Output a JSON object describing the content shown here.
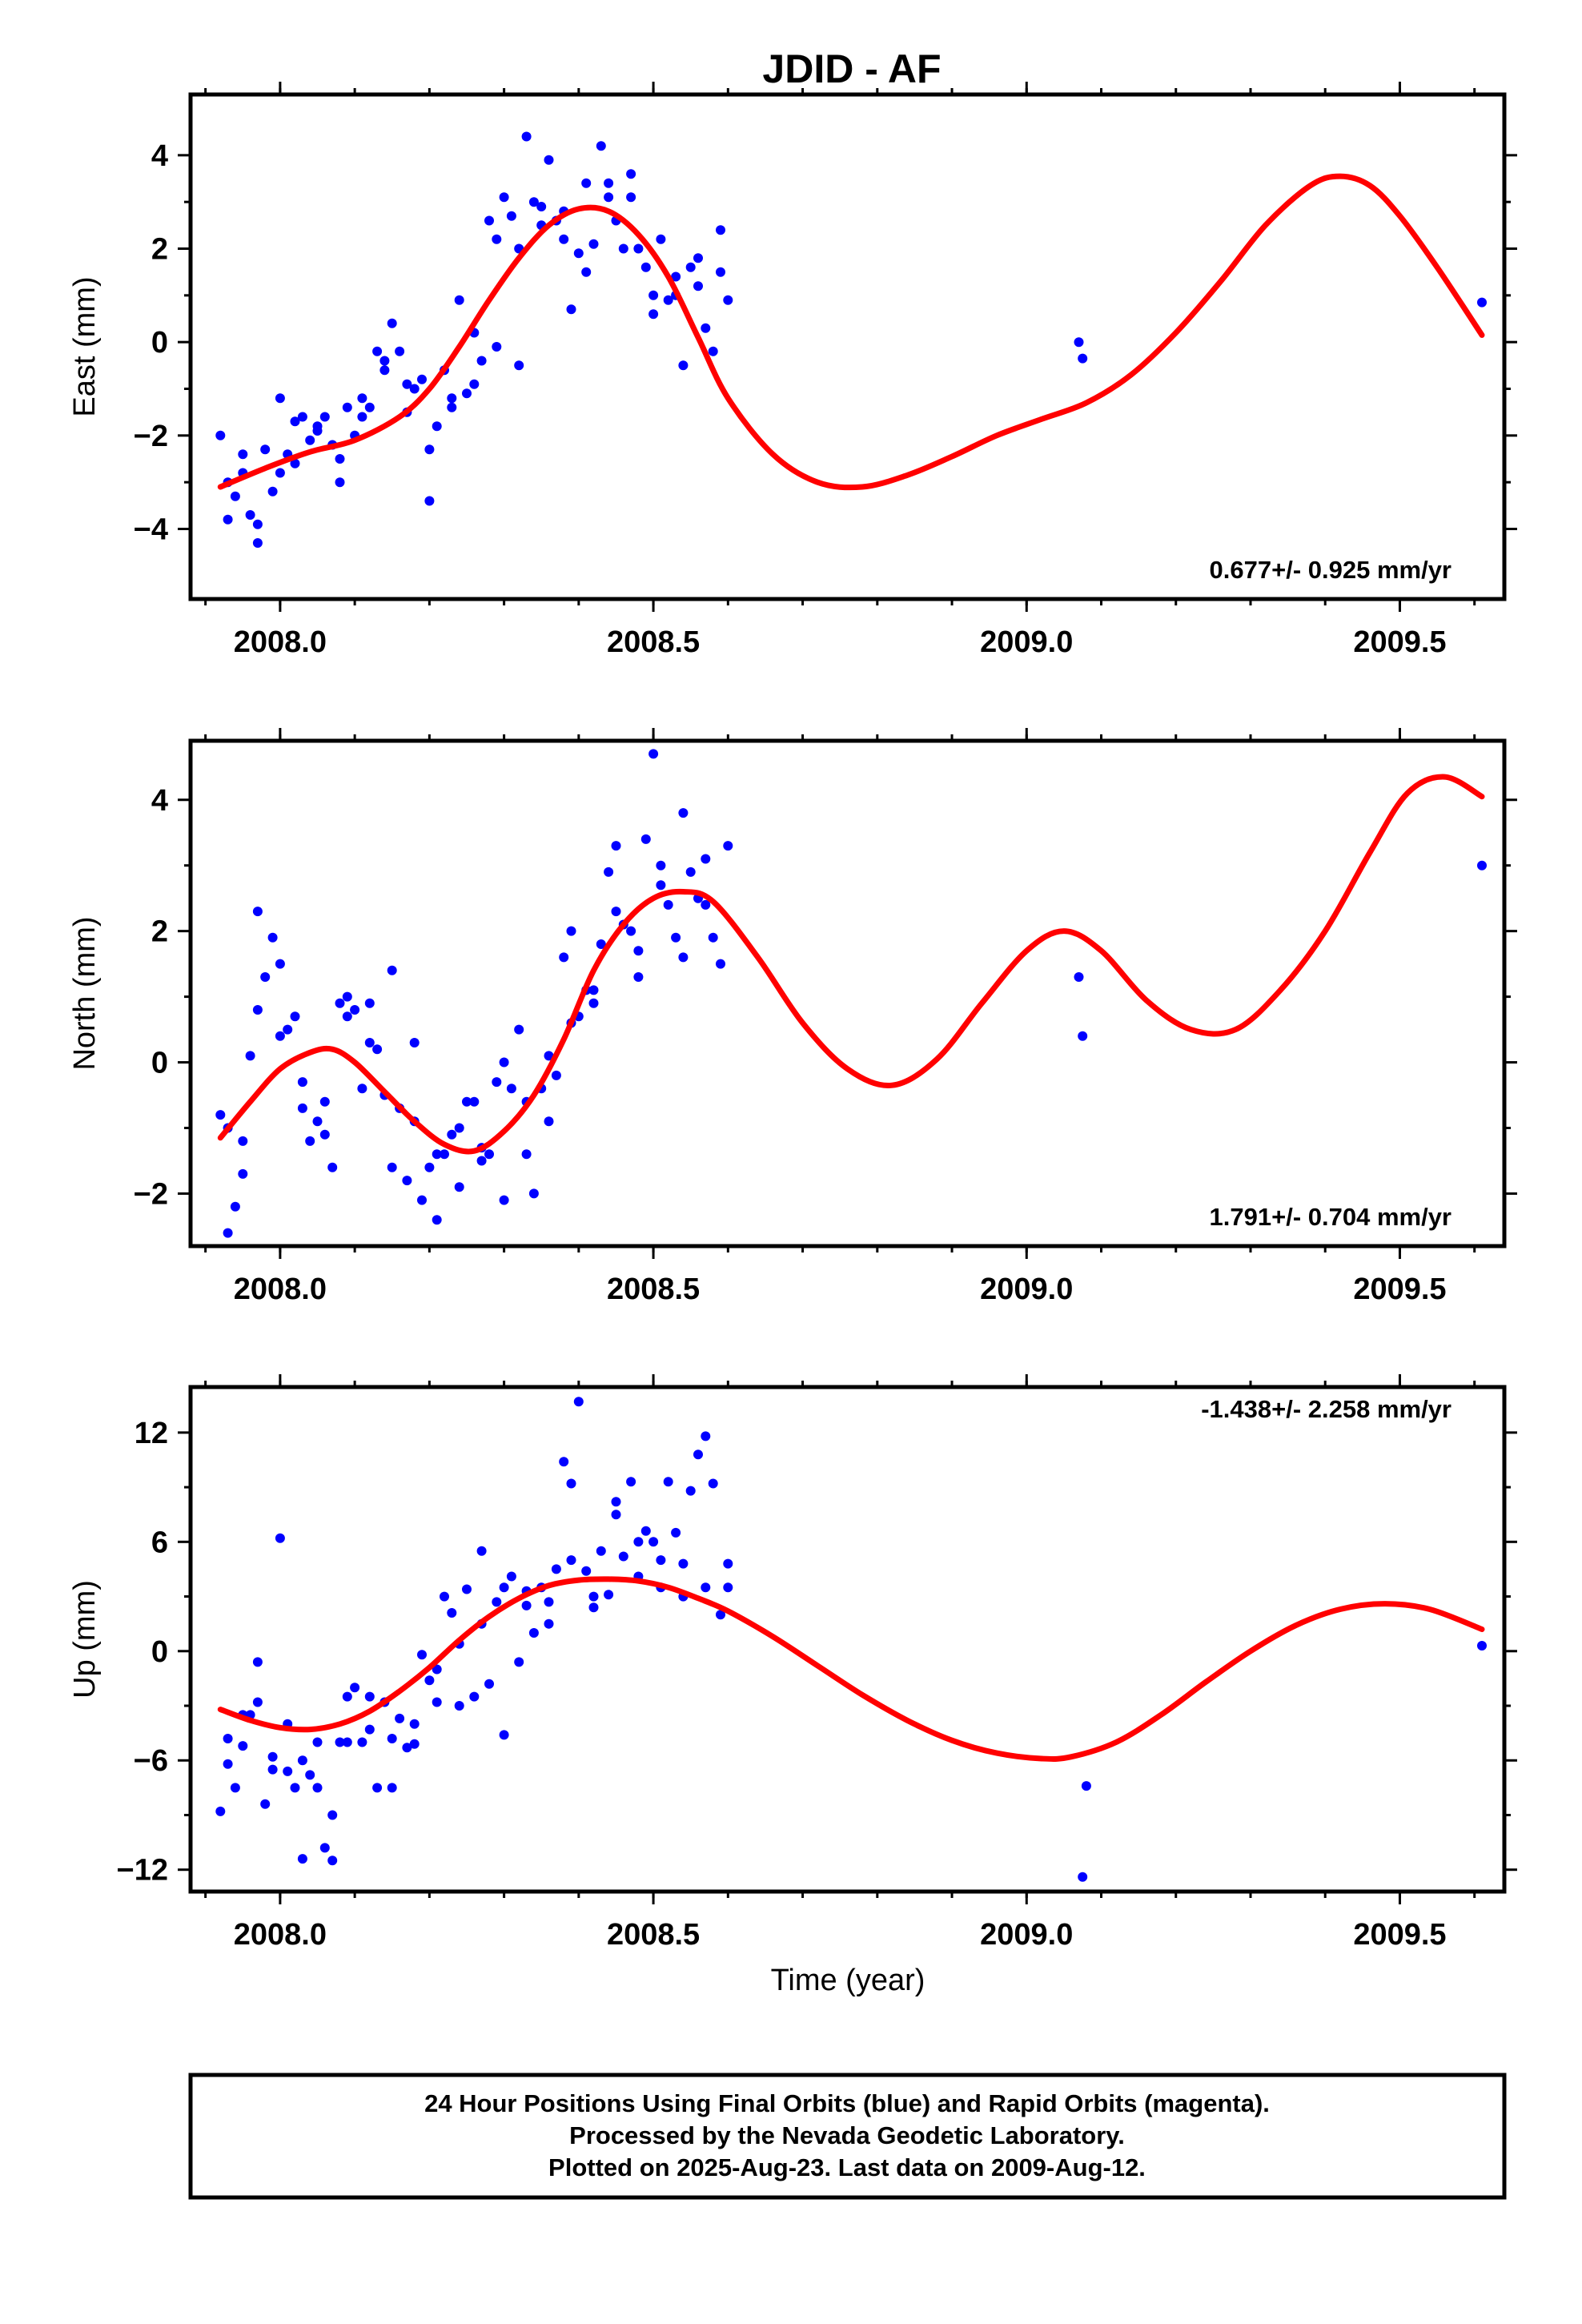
{
  "title": "JDID - AF",
  "xlabel": "Time (year)",
  "footer": {
    "lines": [
      "24 Hour Positions Using Final Orbits (blue) and Rapid Orbits (magenta).",
      "Processed by the Nevada Geodetic Laboratory.",
      "Plotted on 2025-Aug-23. Last data on 2009-Aug-12."
    ]
  },
  "colors": {
    "points": "#0000ff",
    "fit": "#ff0000",
    "axes": "#000000"
  },
  "chart_data": [
    {
      "type": "scatter",
      "title": "",
      "ylabel": "East (mm)",
      "rate": "0.677+/- 0.925 mm/yr",
      "xlim": [
        2007.88,
        2009.64
      ],
      "ylim": [
        -5.5,
        5.3
      ],
      "xticks": [
        2008.0,
        2008.5,
        2009.0,
        2009.5
      ],
      "xtick_labels": [
        "2008.0",
        "2008.5",
        "2009.0",
        "2009.5"
      ],
      "yticks": [
        -4,
        -2,
        0,
        2,
        4
      ],
      "ytick_labels": [
        "−4",
        "−2",
        "0",
        "2",
        "4"
      ],
      "series": [
        {
          "kind": "points",
          "x": [
            2007.92,
            2007.93,
            2007.94,
            2007.95,
            2007.96,
            2007.97,
            2007.98,
            2007.99,
            2008.0,
            2008.01,
            2008.02,
            2008.03,
            2008.04,
            2008.05,
            2008.06,
            2008.07,
            2008.08,
            2008.09,
            2008.1,
            2008.11,
            2008.12,
            2008.13,
            2008.14,
            2008.15,
            2008.16,
            2008.17,
            2008.18,
            2008.19,
            2008.2,
            2008.21,
            2008.22,
            2008.23,
            2008.24,
            2008.25,
            2008.26,
            2008.27,
            2008.28,
            2008.29,
            2008.3,
            2008.31,
            2008.32,
            2008.33,
            2008.34,
            2008.35,
            2008.36,
            2008.37,
            2008.38,
            2008.39,
            2008.4,
            2008.41,
            2008.42,
            2008.43,
            2008.44,
            2008.45,
            2008.46,
            2008.47,
            2008.48,
            2008.49,
            2008.5,
            2008.51,
            2008.52,
            2008.53,
            2008.54,
            2008.55,
            2008.56,
            2008.57,
            2008.58,
            2008.59,
            2008.6,
            2007.93,
            2007.95,
            2007.97,
            2008.0,
            2008.02,
            2008.05,
            2008.08,
            2008.11,
            2008.14,
            2008.17,
            2008.2,
            2008.23,
            2008.26,
            2008.29,
            2008.32,
            2008.35,
            2008.38,
            2008.41,
            2008.44,
            2008.47,
            2008.5,
            2008.53,
            2008.56,
            2008.59,
            2009.07,
            2009.075,
            2009.61
          ],
          "y": [
            -2.0,
            -3.8,
            -3.3,
            -2.8,
            -3.7,
            -4.3,
            -2.3,
            -3.2,
            -1.2,
            -2.4,
            -1.7,
            -1.6,
            -2.1,
            -1.8,
            -1.6,
            -2.2,
            -3.0,
            -1.4,
            -2.0,
            -1.2,
            -1.4,
            -0.2,
            -0.6,
            0.4,
            -0.2,
            -1.5,
            -1.0,
            -0.8,
            -3.4,
            -1.8,
            -0.6,
            -1.4,
            0.9,
            -1.1,
            0.2,
            -0.4,
            2.6,
            2.2,
            3.1,
            2.7,
            2.0,
            4.4,
            3.0,
            2.9,
            3.9,
            2.6,
            2.2,
            0.7,
            1.9,
            3.4,
            2.1,
            4.2,
            3.1,
            2.6,
            2.0,
            3.6,
            2.0,
            1.6,
            1.0,
            2.2,
            0.9,
            1.4,
            -0.5,
            1.6,
            1.2,
            0.3,
            -0.2,
            2.4,
            0.9,
            -3.0,
            -2.4,
            -3.9,
            -2.8,
            -2.6,
            -1.9,
            -2.5,
            -1.6,
            -0.4,
            -0.9,
            -2.3,
            -1.2,
            -0.9,
            -0.1,
            -0.5,
            2.5,
            2.8,
            1.5,
            3.4,
            3.1,
            0.6,
            1.0,
            1.8,
            1.5,
            0.0,
            -0.35,
            0.85
          ]
        },
        {
          "kind": "fit",
          "x": [
            2007.92,
            2007.98,
            2008.04,
            2008.1,
            2008.16,
            2008.2,
            2008.24,
            2008.28,
            2008.32,
            2008.36,
            2008.4,
            2008.44,
            2008.48,
            2008.52,
            2008.56,
            2008.6,
            2008.66,
            2008.72,
            2008.78,
            2008.84,
            2008.9,
            2008.96,
            2009.02,
            2009.08,
            2009.14,
            2009.2,
            2009.26,
            2009.32,
            2009.38,
            2009.42,
            2009.46,
            2009.5,
            2009.55,
            2009.61
          ],
          "y": [
            -3.1,
            -2.7,
            -2.35,
            -2.1,
            -1.6,
            -1.0,
            -0.1,
            0.9,
            1.8,
            2.5,
            2.85,
            2.8,
            2.3,
            1.4,
            0.1,
            -1.2,
            -2.4,
            -3.0,
            -3.1,
            -2.85,
            -2.45,
            -2.0,
            -1.65,
            -1.3,
            -0.7,
            0.2,
            1.3,
            2.5,
            3.35,
            3.55,
            3.35,
            2.7,
            1.6,
            0.15
          ]
        }
      ]
    },
    {
      "type": "scatter",
      "title": "",
      "ylabel": "North (mm)",
      "rate": "1.791+/- 0.704 mm/yr",
      "xlim": [
        2007.88,
        2009.64
      ],
      "ylim": [
        -2.8,
        4.9
      ],
      "xticks": [
        2008.0,
        2008.5,
        2009.0,
        2009.5
      ],
      "xtick_labels": [
        "2008.0",
        "2008.5",
        "2009.0",
        "2009.5"
      ],
      "yticks": [
        -2,
        0,
        2,
        4
      ],
      "ytick_labels": [
        "−2",
        "0",
        "2",
        "4"
      ],
      "series": [
        {
          "kind": "points",
          "x": [
            2007.92,
            2007.93,
            2007.94,
            2007.95,
            2007.96,
            2007.97,
            2007.98,
            2007.99,
            2008.0,
            2008.01,
            2008.02,
            2008.03,
            2008.04,
            2008.05,
            2008.06,
            2008.07,
            2008.08,
            2008.09,
            2008.1,
            2008.11,
            2008.12,
            2008.13,
            2008.14,
            2008.15,
            2008.16,
            2008.17,
            2008.18,
            2008.19,
            2008.2,
            2008.21,
            2008.22,
            2008.23,
            2008.24,
            2008.25,
            2008.26,
            2008.27,
            2008.28,
            2008.29,
            2008.3,
            2008.31,
            2008.32,
            2008.33,
            2008.34,
            2008.35,
            2008.36,
            2008.37,
            2008.38,
            2008.39,
            2008.4,
            2008.41,
            2008.42,
            2008.43,
            2008.44,
            2008.45,
            2008.46,
            2008.47,
            2008.48,
            2008.49,
            2008.5,
            2008.51,
            2008.52,
            2008.53,
            2008.54,
            2008.55,
            2008.56,
            2008.57,
            2008.58,
            2008.59,
            2008.6,
            2007.93,
            2007.95,
            2007.97,
            2008.0,
            2008.03,
            2008.06,
            2008.09,
            2008.12,
            2008.15,
            2008.18,
            2008.21,
            2008.24,
            2008.27,
            2008.3,
            2008.33,
            2008.36,
            2008.39,
            2008.42,
            2008.45,
            2008.48,
            2008.51,
            2008.54,
            2008.57,
            2009.07,
            2009.075,
            2009.61
          ],
          "y": [
            -0.8,
            -2.6,
            -2.2,
            -1.2,
            0.1,
            2.3,
            1.3,
            1.9,
            1.5,
            0.5,
            0.7,
            -0.7,
            -1.2,
            -0.9,
            -0.6,
            -1.6,
            0.9,
            1.0,
            0.8,
            -0.4,
            0.3,
            0.2,
            -0.5,
            -1.6,
            -0.7,
            -1.8,
            -0.9,
            -2.1,
            -1.6,
            -2.4,
            -1.4,
            -1.1,
            -1.9,
            -0.6,
            -0.6,
            -1.5,
            -1.4,
            -0.3,
            -2.1,
            -0.4,
            0.5,
            -1.4,
            -2.0,
            -0.4,
            -0.9,
            -0.2,
            1.6,
            2.0,
            0.7,
            1.1,
            0.9,
            1.8,
            2.9,
            3.3,
            2.1,
            2.0,
            1.7,
            3.4,
            4.7,
            2.7,
            2.4,
            1.9,
            3.8,
            2.9,
            2.5,
            3.1,
            1.9,
            1.5,
            3.3,
            -1.0,
            -1.7,
            0.8,
            0.4,
            -0.3,
            -1.1,
            0.7,
            0.9,
            1.4,
            0.3,
            -1.4,
            -1.0,
            -1.3,
            0.0,
            -0.6,
            0.1,
            0.6,
            1.1,
            2.3,
            1.3,
            3.0,
            1.6,
            2.4,
            1.3,
            0.4,
            3.0
          ]
        },
        {
          "kind": "fit",
          "x": [
            2007.92,
            2007.96,
            2008.0,
            2008.04,
            2008.07,
            2008.1,
            2008.14,
            2008.18,
            2008.22,
            2008.26,
            2008.3,
            2008.34,
            2008.38,
            2008.42,
            2008.46,
            2008.5,
            2008.54,
            2008.58,
            2008.64,
            2008.7,
            2008.76,
            2008.82,
            2008.88,
            2008.94,
            2009.0,
            2009.05,
            2009.1,
            2009.16,
            2009.22,
            2009.28,
            2009.34,
            2009.4,
            2009.46,
            2009.51,
            2009.56,
            2009.61
          ],
          "y": [
            -1.15,
            -0.6,
            -0.1,
            0.15,
            0.2,
            0.0,
            -0.45,
            -0.9,
            -1.25,
            -1.35,
            -1.05,
            -0.5,
            0.35,
            1.4,
            2.1,
            2.5,
            2.6,
            2.45,
            1.6,
            0.6,
            -0.1,
            -0.35,
            0.05,
            0.9,
            1.7,
            2.0,
            1.7,
            0.95,
            0.5,
            0.5,
            1.1,
            2.0,
            3.2,
            4.1,
            4.35,
            4.05
          ]
        }
      ]
    },
    {
      "type": "scatter",
      "title": "",
      "ylabel": "Up (mm)",
      "rate": "-1.438+/- 2.258 mm/yr",
      "xlim": [
        2007.88,
        2009.64
      ],
      "ylim": [
        -13.2,
        14.5
      ],
      "xticks": [
        2008.0,
        2008.5,
        2009.0,
        2009.5
      ],
      "xtick_labels": [
        "2008.0",
        "2008.5",
        "2009.0",
        "2009.5"
      ],
      "yticks": [
        -12,
        -6,
        0,
        6,
        12
      ],
      "ytick_labels": [
        "−12",
        "−6",
        "0",
        "6",
        "12"
      ],
      "series": [
        {
          "kind": "points",
          "x": [
            2007.92,
            2007.93,
            2007.94,
            2007.95,
            2007.96,
            2007.97,
            2007.98,
            2007.99,
            2008.0,
            2008.01,
            2008.02,
            2008.03,
            2008.04,
            2008.05,
            2008.06,
            2008.07,
            2008.08,
            2008.09,
            2008.1,
            2008.11,
            2008.12,
            2008.13,
            2008.14,
            2008.15,
            2008.16,
            2008.17,
            2008.18,
            2008.19,
            2008.2,
            2008.21,
            2008.22,
            2008.23,
            2008.24,
            2008.25,
            2008.26,
            2008.27,
            2008.28,
            2008.29,
            2008.3,
            2008.31,
            2008.32,
            2008.33,
            2008.34,
            2008.35,
            2008.36,
            2008.37,
            2008.38,
            2008.39,
            2008.4,
            2008.41,
            2008.42,
            2008.43,
            2008.44,
            2008.45,
            2008.46,
            2008.47,
            2008.48,
            2008.49,
            2008.5,
            2008.51,
            2008.52,
            2008.53,
            2008.54,
            2008.55,
            2008.56,
            2008.57,
            2008.58,
            2008.59,
            2008.6,
            2007.93,
            2007.95,
            2007.97,
            2007.99,
            2008.01,
            2008.03,
            2008.05,
            2008.07,
            2008.09,
            2008.12,
            2008.15,
            2008.18,
            2008.21,
            2008.24,
            2008.27,
            2008.3,
            2008.33,
            2008.36,
            2008.39,
            2008.42,
            2008.45,
            2008.48,
            2008.51,
            2008.54,
            2008.57,
            2008.6,
            2009.075,
            2009.08,
            2009.61
          ],
          "y": [
            -8.8,
            -4.8,
            -7.5,
            -5.2,
            -3.5,
            -0.6,
            -8.4,
            -5.8,
            6.2,
            -6.6,
            -7.5,
            -11.4,
            -6.8,
            -5.0,
            -10.8,
            -9.0,
            -5.0,
            -2.5,
            -2.0,
            -5.0,
            -4.3,
            -7.5,
            -2.8,
            -4.8,
            -3.7,
            -5.3,
            -5.1,
            -0.2,
            -1.6,
            -2.8,
            3.0,
            2.1,
            0.4,
            3.4,
            -2.5,
            5.5,
            -1.8,
            2.7,
            -4.6,
            4.1,
            -0.6,
            2.5,
            1.0,
            3.5,
            2.7,
            4.5,
            10.4,
            9.2,
            13.7,
            4.4,
            2.4,
            5.5,
            3.1,
            8.2,
            5.2,
            9.3,
            4.1,
            6.6,
            6.0,
            3.5,
            9.3,
            6.5,
            4.8,
            8.8,
            10.8,
            3.5,
            9.2,
            2.0,
            3.5,
            -6.2,
            -3.5,
            -2.8,
            -6.5,
            -4.0,
            -6.0,
            -7.5,
            -11.5,
            -5.0,
            -2.5,
            -7.5,
            -4.0,
            -1.0,
            -3.0,
            1.5,
            3.5,
            3.3,
            1.5,
            5.0,
            3.0,
            7.5,
            6.0,
            5.0,
            3.0,
            11.8,
            4.8,
            -12.4,
            -7.4,
            0.3
          ]
        },
        {
          "kind": "fit",
          "x": [
            2007.92,
            2007.96,
            2008.0,
            2008.04,
            2008.08,
            2008.12,
            2008.16,
            2008.2,
            2008.24,
            2008.28,
            2008.32,
            2008.36,
            2008.4,
            2008.44,
            2008.48,
            2008.52,
            2008.56,
            2008.6,
            2008.66,
            2008.72,
            2008.78,
            2008.84,
            2008.9,
            2008.96,
            2009.02,
            2009.06,
            2009.12,
            2009.18,
            2009.24,
            2009.3,
            2009.36,
            2009.42,
            2009.48,
            2009.54,
            2009.61
          ],
          "y": [
            -3.2,
            -3.8,
            -4.2,
            -4.3,
            -4.0,
            -3.3,
            -2.2,
            -0.9,
            0.6,
            1.9,
            2.9,
            3.6,
            3.9,
            3.95,
            3.85,
            3.5,
            2.9,
            2.2,
            0.8,
            -0.8,
            -2.4,
            -3.8,
            -4.9,
            -5.6,
            -5.9,
            -5.8,
            -5.0,
            -3.5,
            -1.7,
            0.0,
            1.4,
            2.3,
            2.6,
            2.3,
            1.2
          ]
        }
      ]
    }
  ]
}
